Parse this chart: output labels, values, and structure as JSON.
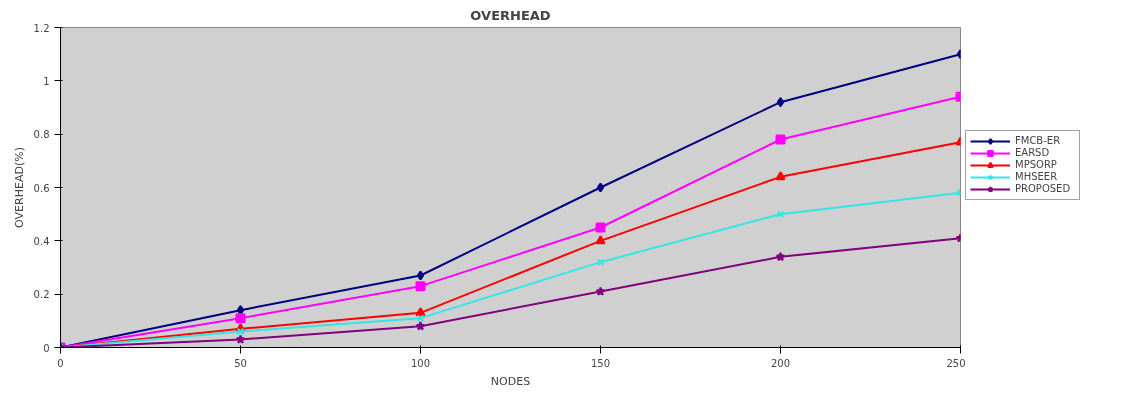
{
  "chart_data": {
    "type": "line",
    "title": "OVERHEAD",
    "xlabel": "NODES",
    "ylabel": "OVERHEAD(%)",
    "x": [
      0,
      50,
      100,
      150,
      200,
      250
    ],
    "series": [
      {
        "name": "FMCB-ER",
        "color": "#000080",
        "marker": "diamond",
        "values": [
          0,
          0.14,
          0.27,
          0.6,
          0.92,
          1.1
        ]
      },
      {
        "name": "EARSD",
        "color": "#ff00ff",
        "marker": "square",
        "values": [
          0,
          0.11,
          0.23,
          0.45,
          0.78,
          0.94
        ]
      },
      {
        "name": "MPSORP",
        "color": "#ff0000",
        "marker": "triangle",
        "values": [
          0,
          0.07,
          0.13,
          0.4,
          0.64,
          0.77
        ]
      },
      {
        "name": "MHSEER",
        "color": "#33e6e6",
        "marker": "cross",
        "values": [
          0,
          0.06,
          0.11,
          0.32,
          0.5,
          0.58
        ]
      },
      {
        "name": "PROPOSED",
        "color": "#800080",
        "marker": "star",
        "values": [
          0,
          0.03,
          0.08,
          0.21,
          0.34,
          0.41
        ]
      }
    ],
    "xlim": [
      0,
      250
    ],
    "xticks": [
      0,
      50,
      100,
      150,
      200,
      250
    ],
    "ylim": [
      0,
      1.2
    ],
    "yticks": [
      0,
      0.2,
      0.4,
      0.6,
      0.8,
      1,
      1.2
    ],
    "grid": false,
    "legend": "right",
    "line_style": "solid"
  }
}
